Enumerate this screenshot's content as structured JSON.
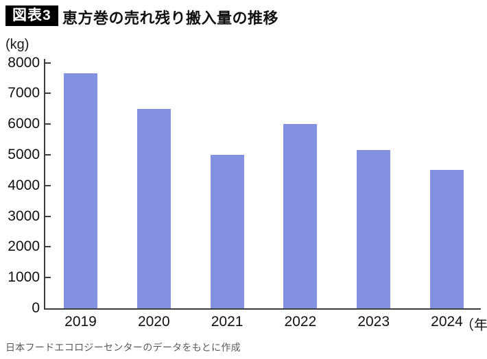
{
  "header": {
    "badge": "図表3",
    "title": "恵方巻の売れ残り搬入量の推移"
  },
  "chart_data": {
    "type": "bar",
    "title": "恵方巻の売れ残り搬入量の推移",
    "unit_label": "(kg)",
    "categories": [
      "2019",
      "2020",
      "2021",
      "2022",
      "2023",
      "2024"
    ],
    "values": [
      7650,
      6500,
      5000,
      6000,
      5150,
      4500
    ],
    "x_suffix": "（年）",
    "xlabel": "年",
    "ylabel": "kg",
    "ylim": [
      0,
      8000
    ],
    "ytick_step": 1000,
    "grid": false,
    "legend": "none",
    "bar_color": "#8490e0",
    "axis_color": "#3c3c3c"
  },
  "footer": {
    "source": "日本フードエコロジーセンターのデータをもとに作成"
  }
}
